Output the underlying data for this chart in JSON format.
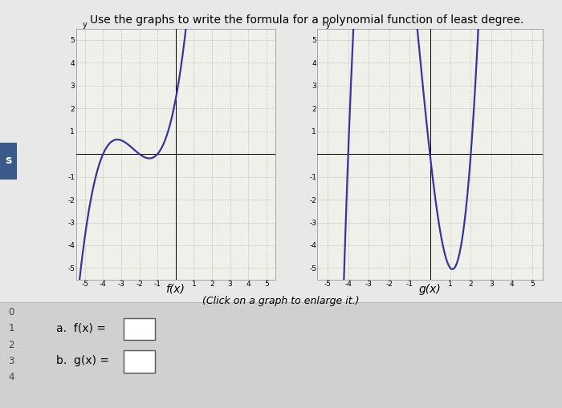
{
  "title": "Use the graphs to write the formula for a polynomial function of least degree.",
  "title_fontsize": 10,
  "bg_color": "#e8e8e8",
  "panel_bg": "#f0f0eb",
  "grid_color": "#c0c0c0",
  "curve_color": "#3535a0",
  "curve_linewidth": 1.6,
  "xlim": [
    -5.5,
    5.5
  ],
  "ylim": [
    -5.5,
    5.5
  ],
  "fx_label": "f(x)",
  "gx_label": "g(x)",
  "click_label": "(Click on a graph to enlarge it.)",
  "answer_a_label": "a.  f(x) =",
  "answer_b_label": "b.  g(x) =",
  "left_numbers": [
    "0",
    "1",
    "2",
    "3",
    "4"
  ],
  "sidebar_color": "#3a5a8a",
  "sidebar_label": "s",
  "bottom_bg": "#cccccc",
  "white": "#ffffff",
  "border_color": "#999999"
}
